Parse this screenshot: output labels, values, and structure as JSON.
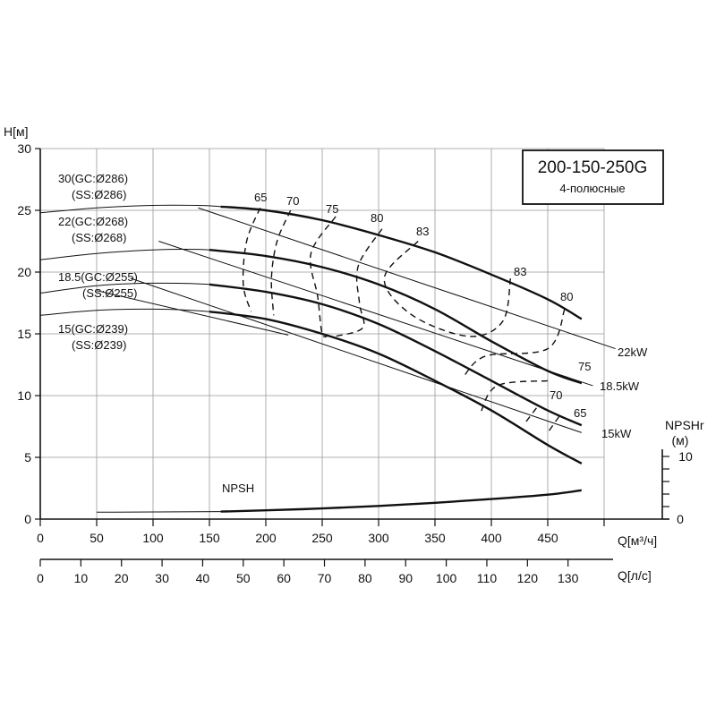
{
  "chart_data": {
    "type": "line",
    "model": "200-150-250G",
    "subtitle": "4-полюсные",
    "ylabel": "H[м]",
    "xlabel_flow_m3h": "Q[м³/ч]",
    "xlabel_flow_ls": "Q[л/с]",
    "npsh_axis_label": "NPSHr",
    "npsh_axis_unit": "(м)",
    "ylim": [
      0,
      30
    ],
    "xlim_m3h": [
      0,
      500
    ],
    "y_ticks": [
      "0",
      "5",
      "10",
      "15",
      "20",
      "25",
      "30"
    ],
    "x_ticks_m3h": [
      "0",
      "50",
      "100",
      "150",
      "200",
      "250",
      "300",
      "350",
      "400",
      "450"
    ],
    "x_ticks_ls": [
      "0",
      "10",
      "20",
      "30",
      "40",
      "50",
      "60",
      "70",
      "80",
      "90",
      "100",
      "110",
      "120",
      "130"
    ],
    "npsh_ticks": [
      "0",
      "10"
    ],
    "impeller_curves": [
      {
        "label_line1": "30(GC:Ø286)",
        "label_line2": "(SS:Ø286)",
        "x": [
          0,
          50,
          100,
          140,
          160,
          200,
          250,
          300,
          350,
          400,
          450,
          480
        ],
        "y": [
          24.8,
          25.2,
          25.4,
          25.4,
          25.3,
          25.0,
          24.2,
          23.0,
          21.6,
          19.8,
          17.8,
          16.2
        ]
      },
      {
        "label_line1": "22(GC:Ø268)",
        "label_line2": "(SS:Ø268)",
        "x": [
          0,
          50,
          100,
          150,
          200,
          250,
          300,
          350,
          400,
          450,
          480
        ],
        "y": [
          21.0,
          21.5,
          21.8,
          21.8,
          21.3,
          20.4,
          19.0,
          17.0,
          14.4,
          12.0,
          11.0
        ]
      },
      {
        "label_line1": "18.5(GC:Ø255)",
        "label_line2": "(SS:Ø255)",
        "x": [
          0,
          50,
          100,
          150,
          200,
          250,
          300,
          350,
          400,
          450,
          480
        ],
        "y": [
          18.3,
          18.9,
          19.1,
          19.0,
          18.4,
          17.4,
          15.8,
          13.6,
          11.2,
          8.8,
          7.6
        ]
      },
      {
        "label_line1": "15(GC:Ø239)",
        "label_line2": "(SS:Ø239)",
        "x": [
          0,
          50,
          100,
          150,
          200,
          250,
          300,
          350,
          400,
          450,
          480
        ],
        "y": [
          16.5,
          16.9,
          17.0,
          16.8,
          16.2,
          15.0,
          13.4,
          11.2,
          8.8,
          6.0,
          4.5
        ]
      }
    ],
    "power_lines": [
      {
        "label": "22kW",
        "x": [
          140,
          510
        ],
        "y": [
          25.2,
          13.8
        ]
      },
      {
        "label": "18.5kW",
        "x": [
          105,
          490
        ],
        "y": [
          22.5,
          10.8
        ]
      },
      {
        "label": "15kW",
        "x": [
          80,
          480
        ],
        "y": [
          19.5,
          7.0
        ]
      },
      {
        "label": "",
        "x": [
          50,
          220
        ],
        "y": [
          18.5,
          14.9
        ]
      }
    ],
    "efficiency_labels": [
      "65",
      "70",
      "75",
      "80",
      "83",
      "83",
      "80",
      "75",
      "70",
      "65"
    ],
    "npsh_curve": {
      "label": "NPSH",
      "x": [
        160,
        200,
        250,
        300,
        350,
        400,
        450,
        480
      ],
      "y_npsh_m": [
        1.2,
        1.4,
        1.7,
        2.1,
        2.6,
        3.2,
        3.9,
        4.6
      ]
    },
    "npsh_ylim": [
      0,
      10
    ]
  }
}
